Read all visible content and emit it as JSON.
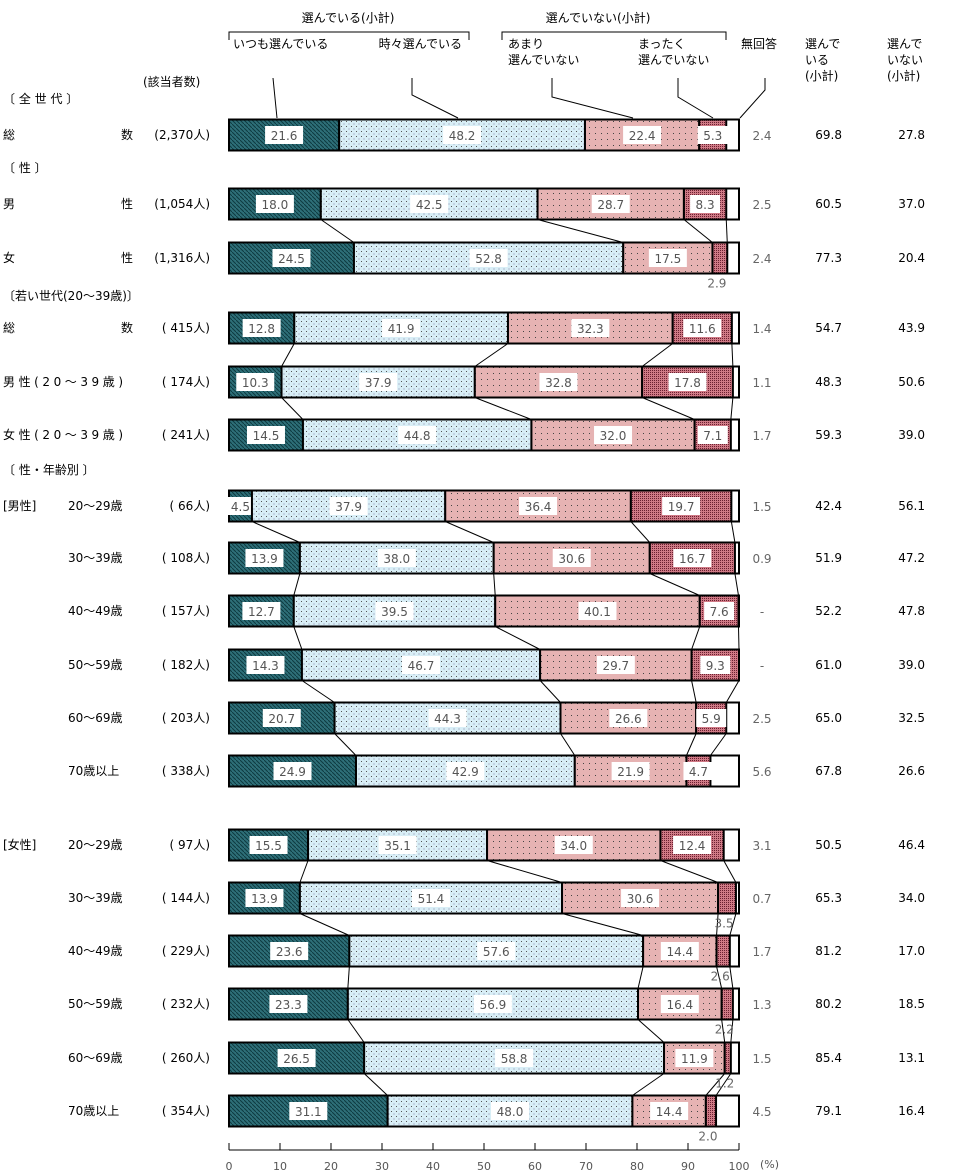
{
  "chart_data": {
    "type": "bar",
    "orientation": "horizontal-stacked-100",
    "legend": {
      "group_selected": "選んでいる(小計)",
      "group_not_selected": "選んでいない(小計)",
      "segments": [
        "いつも選んでいる",
        "時々選んでいる",
        "あまり\n選んでいない",
        "まったく\n選んでいない",
        "無回答"
      ]
    },
    "count_header": "(該当者数)",
    "subtotal_headers": [
      "選んで\nいる\n(小計)",
      "選んで\nいない\n(小計)"
    ],
    "colors": [
      "#2e6f78",
      "#d8eef6",
      "#e6b3b3",
      "#c05a6a",
      "#ffffff"
    ],
    "xlim": [
      0,
      100
    ],
    "xticks": [
      "0",
      "10",
      "20",
      "30",
      "40",
      "50",
      "60",
      "70",
      "80",
      "90",
      "100"
    ],
    "xunit": "(%)",
    "sections": [
      "〔 全 世 代 〕",
      "〔 性 〕",
      "〔若い世代(20～39歳)〕",
      "〔 性・年齢別 〕"
    ],
    "rows": [
      {
        "prefix": "",
        "label": "総　　　　数",
        "n": "(2,370人)",
        "values": [
          21.6,
          48.2,
          22.4,
          5.3,
          2.4
        ],
        "labels": [
          "21.6",
          "48.2",
          "22.4",
          "5.3",
          "2.4"
        ],
        "sub": [
          "69.8",
          "27.8"
        ]
      },
      {
        "prefix": "",
        "label": "男　　　　性",
        "n": "(1,054人)",
        "values": [
          18.0,
          42.5,
          28.7,
          8.3,
          2.5
        ],
        "labels": [
          "18.0",
          "42.5",
          "28.7",
          "8.3",
          "2.5"
        ],
        "sub": [
          "60.5",
          "37.0"
        ]
      },
      {
        "prefix": "",
        "label": "女　　　　性",
        "n": "(1,316人)",
        "values": [
          24.5,
          52.8,
          17.5,
          2.9,
          2.4
        ],
        "labels": [
          "24.5",
          "52.8",
          "17.5",
          "2.9",
          "2.4"
        ],
        "sub": [
          "77.3",
          "20.4"
        ]
      },
      {
        "prefix": "",
        "label": "総　　　　数",
        "n": "( 415人)",
        "values": [
          12.8,
          41.9,
          32.3,
          11.6,
          1.4
        ],
        "labels": [
          "12.8",
          "41.9",
          "32.3",
          "11.6",
          "1.4"
        ],
        "sub": [
          "54.7",
          "43.9"
        ]
      },
      {
        "prefix": "",
        "label": "男性(20～39歳)",
        "n": "( 174人)",
        "values": [
          10.3,
          37.9,
          32.8,
          17.8,
          1.1
        ],
        "labels": [
          "10.3",
          "37.9",
          "32.8",
          "17.8",
          "1.1"
        ],
        "sub": [
          "48.3",
          "50.6"
        ]
      },
      {
        "prefix": "",
        "label": "女性(20～39歳)",
        "n": "( 241人)",
        "values": [
          14.5,
          44.8,
          32.0,
          7.1,
          1.7
        ],
        "labels": [
          "14.5",
          "44.8",
          "32.0",
          "7.1",
          "1.7"
        ],
        "sub": [
          "59.3",
          "39.0"
        ]
      },
      {
        "prefix": "[男性]",
        "label": "20～29歳",
        "n": "( 66人)",
        "values": [
          4.5,
          37.9,
          36.4,
          19.7,
          1.5
        ],
        "labels": [
          "4.5",
          "37.9",
          "36.4",
          "19.7",
          "1.5"
        ],
        "sub": [
          "42.4",
          "56.1"
        ]
      },
      {
        "prefix": "",
        "label": "30～39歳",
        "n": "( 108人)",
        "values": [
          13.9,
          38.0,
          30.6,
          16.7,
          0.9
        ],
        "labels": [
          "13.9",
          "38.0",
          "30.6",
          "16.7",
          "0.9"
        ],
        "sub": [
          "51.9",
          "47.2"
        ]
      },
      {
        "prefix": "",
        "label": "40～49歳",
        "n": "( 157人)",
        "values": [
          12.7,
          39.5,
          40.1,
          7.6,
          0
        ],
        "labels": [
          "12.7",
          "39.5",
          "40.1",
          "7.6",
          "-"
        ],
        "sub": [
          "52.2",
          "47.8"
        ]
      },
      {
        "prefix": "",
        "label": "50～59歳",
        "n": "( 182人)",
        "values": [
          14.3,
          46.7,
          29.7,
          9.3,
          0
        ],
        "labels": [
          "14.3",
          "46.7",
          "29.7",
          "9.3",
          "-"
        ],
        "sub": [
          "61.0",
          "39.0"
        ]
      },
      {
        "prefix": "",
        "label": "60～69歳",
        "n": "( 203人)",
        "values": [
          20.7,
          44.3,
          26.6,
          5.9,
          2.5
        ],
        "labels": [
          "20.7",
          "44.3",
          "26.6",
          "5.9",
          "2.5"
        ],
        "sub": [
          "65.0",
          "32.5"
        ]
      },
      {
        "prefix": "",
        "label": "70歳以上",
        "n": "( 338人)",
        "values": [
          24.9,
          42.9,
          21.9,
          4.7,
          5.6
        ],
        "labels": [
          "24.9",
          "42.9",
          "21.9",
          "4.7",
          "5.6"
        ],
        "sub": [
          "67.8",
          "26.6"
        ]
      },
      {
        "prefix": "[女性]",
        "label": "20～29歳",
        "n": "( 97人)",
        "values": [
          15.5,
          35.1,
          34.0,
          12.4,
          3.1
        ],
        "labels": [
          "15.5",
          "35.1",
          "34.0",
          "12.4",
          "3.1"
        ],
        "sub": [
          "50.5",
          "46.4"
        ]
      },
      {
        "prefix": "",
        "label": "30～39歳",
        "n": "( 144人)",
        "values": [
          13.9,
          51.4,
          30.6,
          3.5,
          0.7
        ],
        "labels": [
          "13.9",
          "51.4",
          "30.6",
          "3.5",
          "0.7"
        ],
        "sub": [
          "65.3",
          "34.0"
        ]
      },
      {
        "prefix": "",
        "label": "40～49歳",
        "n": "( 229人)",
        "values": [
          23.6,
          57.6,
          14.4,
          2.6,
          1.7
        ],
        "labels": [
          "23.6",
          "57.6",
          "14.4",
          "2.6",
          "1.7"
        ],
        "sub": [
          "81.2",
          "17.0"
        ]
      },
      {
        "prefix": "",
        "label": "50～59歳",
        "n": "( 232人)",
        "values": [
          23.3,
          56.9,
          16.4,
          2.2,
          1.3
        ],
        "labels": [
          "23.3",
          "56.9",
          "16.4",
          "2.2",
          "1.3"
        ],
        "sub": [
          "80.2",
          "18.5"
        ]
      },
      {
        "prefix": "",
        "label": "60～69歳",
        "n": "( 260人)",
        "values": [
          26.5,
          58.8,
          11.9,
          1.2,
          1.5
        ],
        "labels": [
          "26.5",
          "58.8",
          "11.9",
          "1.2",
          "1.5"
        ],
        "sub": [
          "85.4",
          "13.1"
        ]
      },
      {
        "prefix": "",
        "label": "70歳以上",
        "n": "( 354人)",
        "values": [
          31.1,
          48.0,
          14.4,
          2.0,
          4.5
        ],
        "labels": [
          "31.1",
          "48.0",
          "14.4",
          "2.0",
          "4.5"
        ],
        "sub": [
          "79.1",
          "16.4"
        ]
      }
    ]
  }
}
